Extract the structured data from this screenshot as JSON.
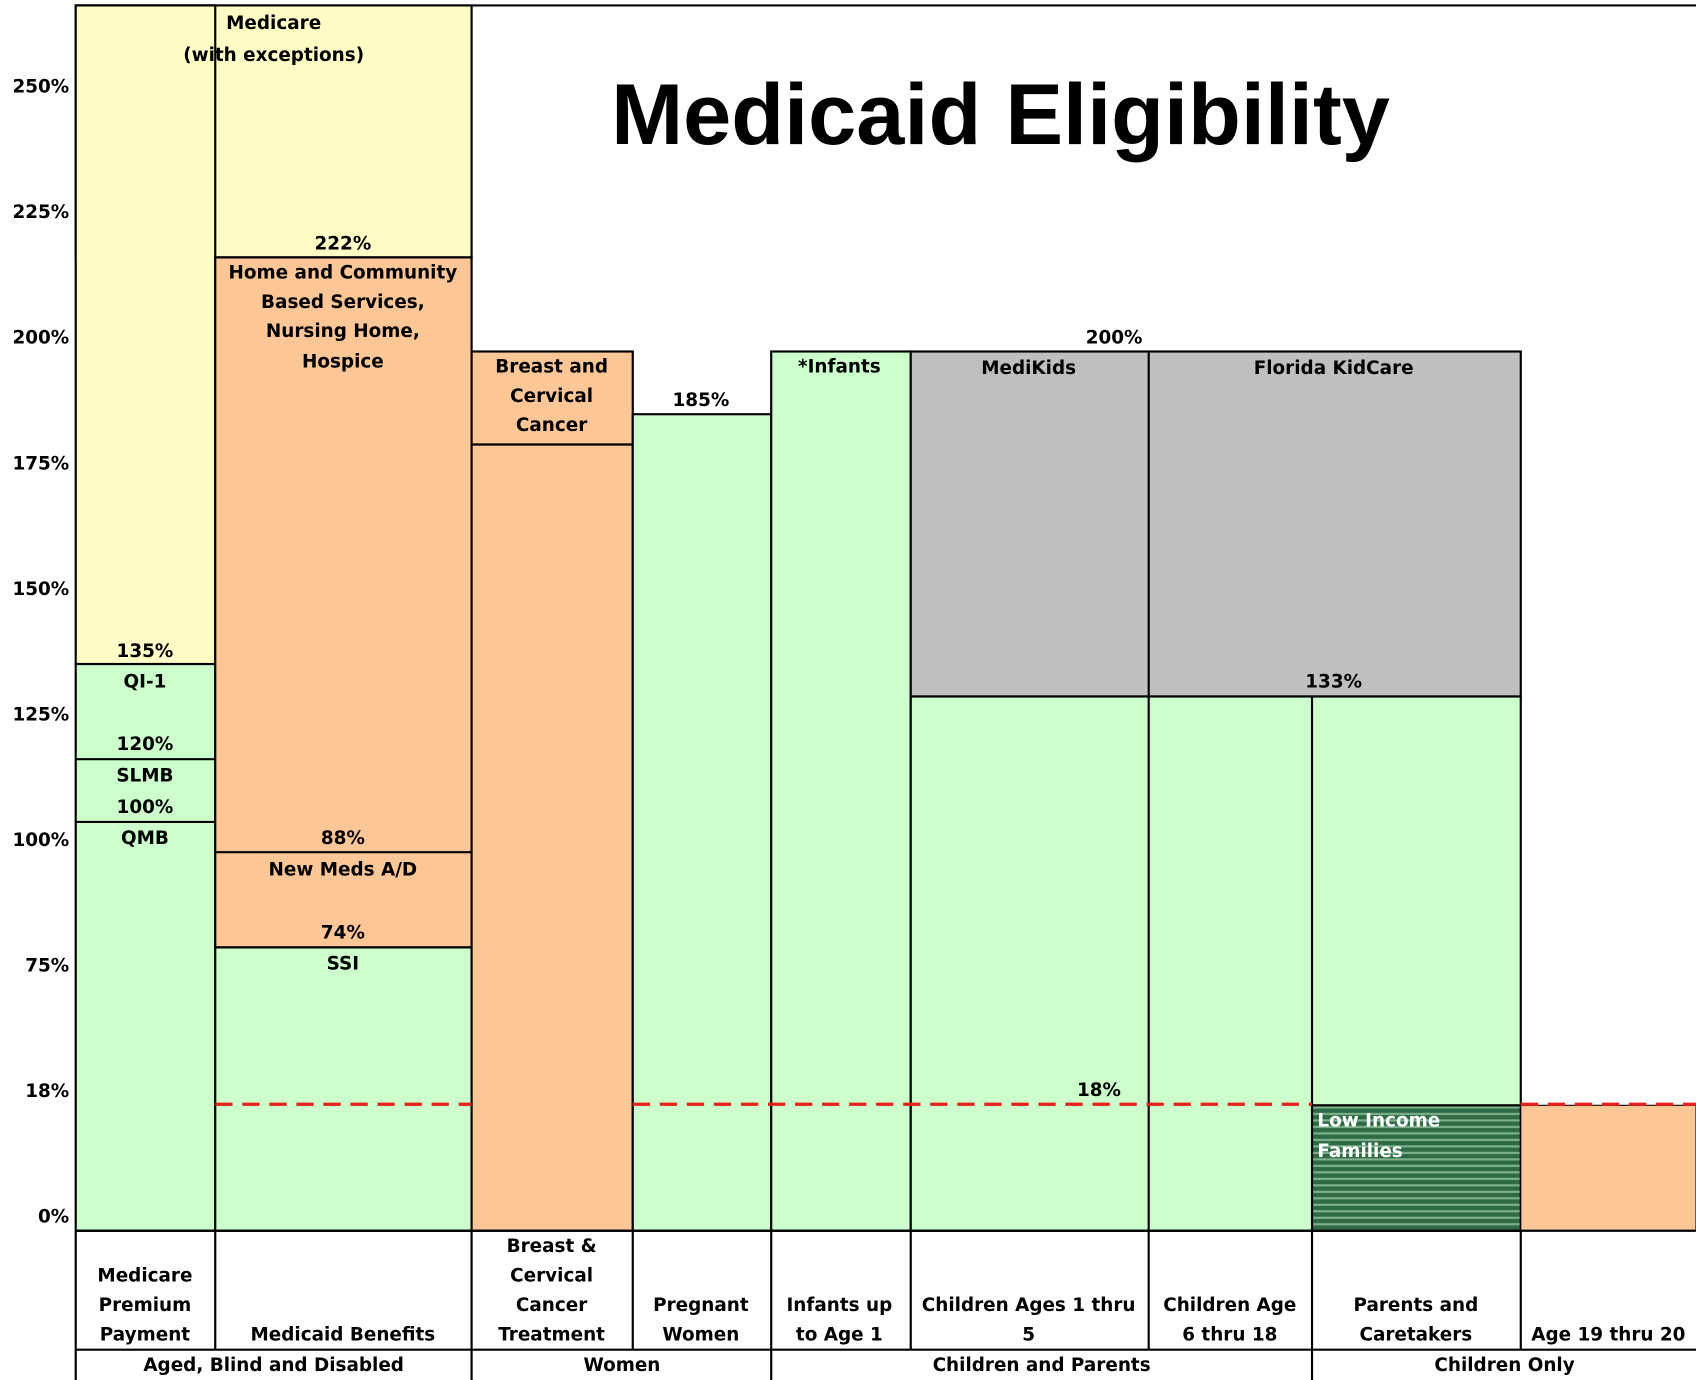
{
  "title": "Medicaid Eligibility",
  "y_axis_labels": [
    "250%",
    "225%",
    "200%",
    "175%",
    "150%",
    "125%",
    "100%",
    "75%",
    "18%",
    "0%"
  ],
  "blocks": {
    "medicare": [
      "Medicare",
      "(with exceptions)"
    ],
    "medicare_premium": [
      "135%",
      "QI-1",
      "120%",
      "SLMB",
      "100%",
      "QMB"
    ],
    "medicaid_benefits": [
      "222%",
      "Home and Community",
      "Based Services,",
      "Nursing Home,",
      "Hospice",
      "88%",
      "New Meds A/D",
      "74%",
      "SSI"
    ],
    "breast_cancer": [
      "Breast and",
      "Cervical",
      "Cancer"
    ],
    "pregnant": "185%",
    "infants": "*Infants",
    "children_top": "200%",
    "medikids": "MediKids",
    "kidcare": "Florida KidCare",
    "kidcare_base": "133%",
    "threshold": "18%",
    "low_income": [
      "Low Income",
      "Families"
    ]
  },
  "categories": [
    [
      "Medicare",
      "Premium",
      "Payment"
    ],
    [
      "Medicaid Benefits"
    ],
    [
      "Breast &",
      "Cervical",
      "Cancer",
      "Treatment"
    ],
    [
      "Pregnant",
      "Women"
    ],
    [
      "Infants up",
      "to Age 1"
    ],
    [
      "Children Ages 1 thru",
      "5"
    ],
    [
      "Children Age",
      "6 thru 18"
    ],
    [
      "Parents and",
      "Caretakers"
    ],
    [
      "Age 19 thru 20"
    ]
  ],
  "groups": [
    "Aged, Blind and Disabled",
    "Women",
    "Children and Parents",
    "Children Only"
  ]
}
